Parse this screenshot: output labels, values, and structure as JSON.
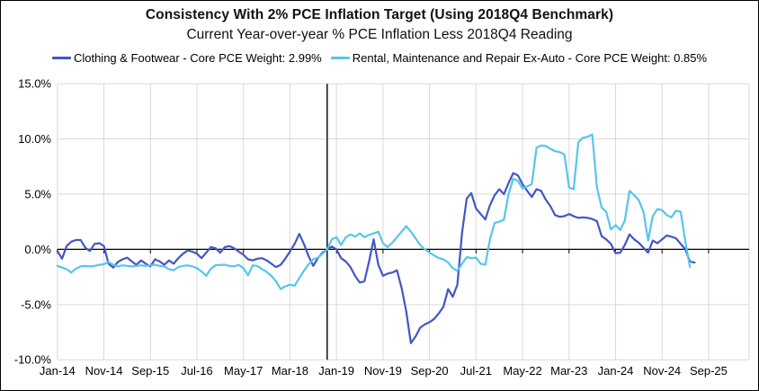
{
  "header": {
    "title": "Consistency With 2% PCE Inflation Target (Using 2018Q4 Benchmark)",
    "subtitle": "Current Year-over-year % PCE Inflation Less 2018Q4 Reading"
  },
  "chart_data": {
    "type": "line",
    "title": "Consistency With 2% PCE Inflation Target (Using 2018Q4 Benchmark)",
    "subtitle": "Current Year-over-year % PCE Inflation Less 2018Q4 Reading",
    "grid": true,
    "legend_position": "top",
    "frequency": "monthly",
    "start_month": "Jan-2014",
    "end_month": "Jun-2025",
    "ylim": [
      -10,
      15
    ],
    "y_ticks": [
      {
        "label": "15.0%",
        "value": 15
      },
      {
        "label": "10.0%",
        "value": 10
      },
      {
        "label": "5.0%",
        "value": 5
      },
      {
        "label": "0.0%",
        "value": 0
      },
      {
        "label": "-5.0%",
        "value": -5
      },
      {
        "label": "-10.0%",
        "value": -10
      }
    ],
    "x_tick_labels": [
      "Jan-14",
      "Nov-14",
      "Sep-15",
      "Jul-16",
      "May-17",
      "Mar-18",
      "Jan-19",
      "Nov-19",
      "Sep-20",
      "Jul-21",
      "May-22",
      "Mar-23",
      "Jan-24",
      "Nov-24",
      "Sep-25"
    ],
    "x_tick_month_indices": [
      0,
      10,
      20,
      30,
      40,
      50,
      60,
      70,
      80,
      90,
      100,
      110,
      120,
      130,
      140
    ],
    "benchmark_month_index": 58,
    "benchmark_label": "2018Q4",
    "axis_color": "#000000",
    "gridline_color": "#d9d9d9",
    "series": [
      {
        "name": "Clothing & Footwear - Core PCE Weight: 2.99%",
        "color": "#4356c4",
        "values": [
          -0.15,
          -0.85,
          0.3,
          0.7,
          0.85,
          0.85,
          0.15,
          -0.15,
          0.5,
          0.55,
          0.3,
          -1.3,
          -1.65,
          -1.15,
          -0.9,
          -0.75,
          -1.1,
          -1.4,
          -1.0,
          -1.3,
          -1.55,
          -0.9,
          -1.1,
          -1.4,
          -1.0,
          -1.3,
          -0.8,
          -0.4,
          -0.1,
          -0.2,
          -0.4,
          -0.8,
          -0.3,
          0.2,
          0.1,
          -0.3,
          0.2,
          0.3,
          0.1,
          -0.2,
          -0.5,
          -0.9,
          -1.0,
          -0.85,
          -0.8,
          -1.0,
          -1.3,
          -1.6,
          -1.4,
          -0.85,
          -0.2,
          0.5,
          1.4,
          0.5,
          -0.6,
          -1.5,
          -0.8,
          -0.3,
          0.0,
          0.25,
          0.0,
          -0.8,
          -1.1,
          -1.6,
          -2.4,
          -3.0,
          -2.9,
          -1.1,
          0.9,
          -1.4,
          -2.4,
          -2.2,
          -2.1,
          -1.9,
          -3.5,
          -5.6,
          -8.5,
          -7.9,
          -7.1,
          -6.8,
          -6.6,
          -6.3,
          -5.8,
          -5.2,
          -3.6,
          -4.3,
          -3.2,
          1.5,
          4.6,
          5.1,
          3.7,
          3.2,
          2.7,
          4.0,
          4.9,
          5.45,
          5.0,
          6.0,
          6.9,
          6.7,
          5.9,
          5.3,
          4.75,
          5.45,
          5.3,
          4.5,
          3.9,
          3.1,
          2.95,
          3.0,
          3.2,
          3.0,
          2.85,
          2.9,
          2.85,
          2.75,
          2.55,
          1.2,
          0.9,
          0.5,
          -0.35,
          -0.3,
          0.4,
          1.35,
          0.9,
          0.6,
          0.15,
          -0.3,
          0.8,
          0.55,
          0.9,
          1.25,
          1.15,
          1.0,
          0.5,
          0.0,
          -1.1,
          -1.2
        ]
      },
      {
        "name": "Rental, Maintenance and Repair Ex-Auto - Core PCE Weight: 0.85%",
        "color": "#58c5e9",
        "values": [
          -1.5,
          -1.65,
          -1.8,
          -2.1,
          -1.75,
          -1.55,
          -1.5,
          -1.55,
          -1.5,
          -1.4,
          -1.35,
          -1.15,
          -1.4,
          -1.55,
          -1.45,
          -1.5,
          -1.55,
          -1.5,
          -1.45,
          -1.5,
          -1.45,
          -1.4,
          -1.5,
          -1.55,
          -1.8,
          -1.9,
          -1.6,
          -1.5,
          -1.45,
          -1.55,
          -1.7,
          -2.0,
          -2.4,
          -1.75,
          -1.45,
          -1.4,
          -1.4,
          -1.5,
          -1.55,
          -1.4,
          -1.7,
          -2.35,
          -1.45,
          -1.5,
          -1.8,
          -2.05,
          -2.4,
          -2.9,
          -3.6,
          -3.35,
          -3.2,
          -3.3,
          -2.6,
          -1.95,
          -1.35,
          -0.9,
          -0.75,
          -0.4,
          0.0,
          0.9,
          1.1,
          0.4,
          1.1,
          1.35,
          1.15,
          1.45,
          1.1,
          1.3,
          1.45,
          1.6,
          0.55,
          0.2,
          0.6,
          1.1,
          1.6,
          2.1,
          1.6,
          1.0,
          0.4,
          0.0,
          -0.3,
          -0.55,
          -0.8,
          -0.9,
          -1.2,
          -1.7,
          -1.95,
          -1.3,
          -0.7,
          -0.8,
          -0.75,
          -1.3,
          -1.4,
          0.9,
          2.4,
          2.5,
          2.7,
          5.0,
          6.4,
          6.2,
          5.5,
          5.7,
          5.9,
          9.2,
          9.4,
          9.35,
          9.1,
          8.9,
          8.8,
          8.6,
          5.6,
          5.45,
          9.7,
          10.1,
          10.2,
          10.4,
          5.6,
          3.8,
          3.4,
          1.8,
          2.2,
          1.75,
          2.6,
          5.3,
          4.9,
          4.45,
          3.4,
          0.8,
          3.0,
          3.65,
          3.55,
          3.1,
          2.9,
          3.5,
          3.4,
          0.7,
          -1.6,
          null
        ]
      }
    ]
  }
}
